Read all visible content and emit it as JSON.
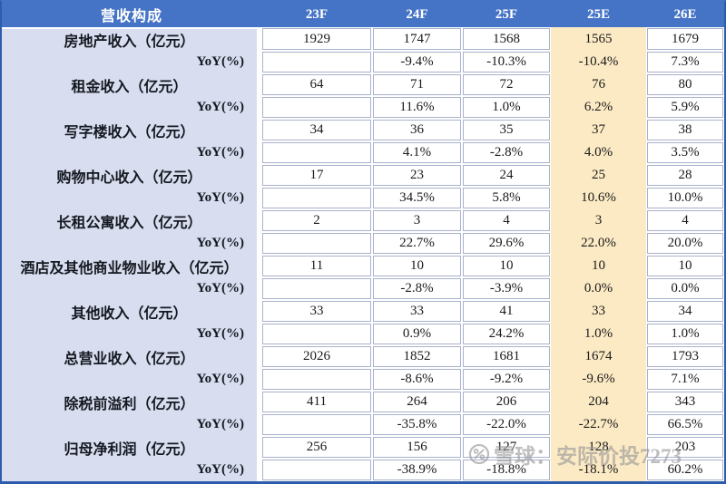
{
  "chart_data": {
    "type": "table",
    "title": "营收构成",
    "columns": [
      "23F",
      "24F",
      "25F",
      "25E",
      "26E"
    ],
    "highlight_column": "25E",
    "highlight_column_index": 3,
    "rows": [
      {
        "label": "房地产收入（亿元）",
        "type": "metric",
        "values": [
          "1929",
          "1747",
          "1568",
          "1565",
          "1679"
        ]
      },
      {
        "label": "YoY(%)",
        "type": "yoy",
        "values": [
          "",
          "-9.4%",
          "-10.3%",
          "-10.4%",
          "7.3%"
        ]
      },
      {
        "label": "租金收入（亿元）",
        "type": "metric",
        "values": [
          "64",
          "71",
          "72",
          "76",
          "80"
        ]
      },
      {
        "label": "YoY(%)",
        "type": "yoy",
        "values": [
          "",
          "11.6%",
          "1.0%",
          "6.2%",
          "5.9%"
        ]
      },
      {
        "label": "写字楼收入（亿元）",
        "type": "metric",
        "values": [
          "34",
          "36",
          "35",
          "37",
          "38"
        ]
      },
      {
        "label": "YoY(%)",
        "type": "yoy",
        "values": [
          "",
          "4.1%",
          "-2.8%",
          "4.0%",
          "3.5%"
        ]
      },
      {
        "label": "购物中心收入（亿元）",
        "type": "metric",
        "values": [
          "17",
          "23",
          "24",
          "25",
          "28"
        ]
      },
      {
        "label": "YoY(%)",
        "type": "yoy",
        "values": [
          "",
          "34.5%",
          "5.8%",
          "10.6%",
          "10.0%"
        ]
      },
      {
        "label": "长租公寓收入（亿元）",
        "type": "metric",
        "values": [
          "2",
          "3",
          "4",
          "3",
          "4"
        ]
      },
      {
        "label": "YoY(%)",
        "type": "yoy",
        "values": [
          "",
          "22.7%",
          "29.6%",
          "22.0%",
          "20.0%"
        ]
      },
      {
        "label": "酒店及其他商业物业收入（亿元）",
        "type": "metric",
        "values": [
          "11",
          "10",
          "10",
          "10",
          "10"
        ]
      },
      {
        "label": "YoY(%)",
        "type": "yoy",
        "values": [
          "",
          "-2.8%",
          "-3.9%",
          "0.0%",
          "0.0%"
        ]
      },
      {
        "label": "其他收入（亿元）",
        "type": "metric",
        "values": [
          "33",
          "33",
          "41",
          "33",
          "34"
        ]
      },
      {
        "label": "YoY(%)",
        "type": "yoy",
        "values": [
          "",
          "0.9%",
          "24.2%",
          "1.0%",
          "1.0%"
        ]
      },
      {
        "label": "总营业收入（亿元）",
        "type": "metric",
        "values": [
          "2026",
          "1852",
          "1681",
          "1674",
          "1793"
        ]
      },
      {
        "label": "YoY(%)",
        "type": "yoy",
        "values": [
          "",
          "-8.6%",
          "-9.2%",
          "-9.6%",
          "7.1%"
        ]
      },
      {
        "label": "除税前溢利（亿元）",
        "type": "metric",
        "values": [
          "411",
          "264",
          "206",
          "204",
          "343"
        ]
      },
      {
        "label": "YoY(%)",
        "type": "yoy",
        "values": [
          "",
          "-35.8%",
          "-22.0%",
          "-22.7%",
          "66.5%"
        ]
      },
      {
        "label": "归母净利润（亿元）",
        "type": "metric",
        "values": [
          "256",
          "156",
          "127",
          "128",
          "203"
        ]
      },
      {
        "label": "YoY(%)",
        "type": "yoy",
        "values": [
          "",
          "-38.9%",
          "-18.8%",
          "-18.1%",
          "60.2%"
        ]
      }
    ]
  },
  "watermark": {
    "icon": "snowball-logo",
    "text": "雪球：安际价投7273"
  },
  "colors": {
    "header_bg": "#4574C6",
    "label_column_bg": "#D8DDF0",
    "highlight_column_bg": "#FBEAC4",
    "cell_border": "#A9B2CC",
    "outer_border": "#2E5CAC",
    "header_text": "#FFFFFF",
    "body_text": "#1A1A1A",
    "watermark_text": "#969696"
  }
}
